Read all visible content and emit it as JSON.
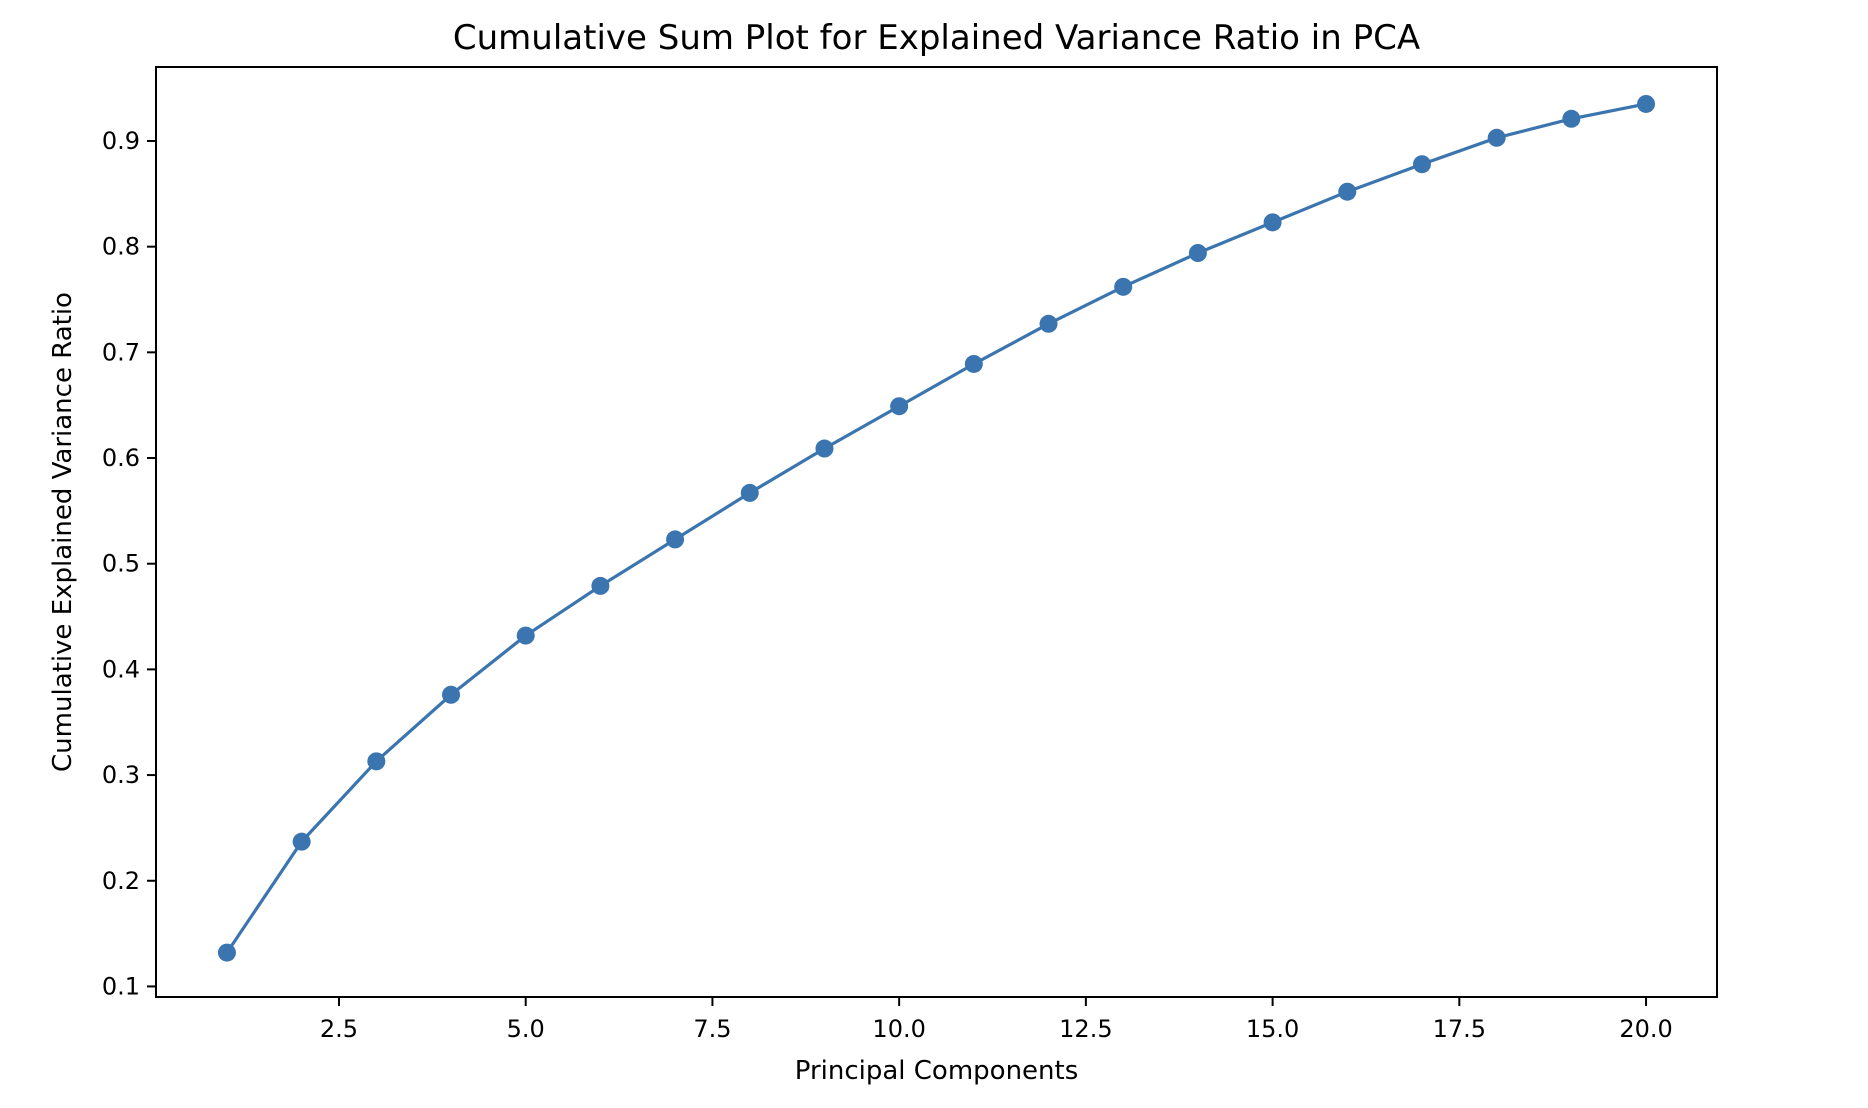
{
  "chart_data": {
    "type": "line",
    "title": "Cumulative Sum Plot for Explained Variance Ratio in PCA",
    "xlabel": "Principal Components",
    "ylabel": "Cumulative Explained Variance Ratio",
    "xlim": [
      0.05,
      20.95
    ],
    "ylim": [
      0.09,
      0.97
    ],
    "grid": false,
    "xticks": [
      2.5,
      5.0,
      7.5,
      10.0,
      12.5,
      15.0,
      17.5,
      20.0
    ],
    "xtick_labels": [
      "2.5",
      "5.0",
      "7.5",
      "10.0",
      "12.5",
      "15.0",
      "17.5",
      "20.0"
    ],
    "yticks": [
      0.1,
      0.2,
      0.3,
      0.4,
      0.5,
      0.6,
      0.7,
      0.8,
      0.9
    ],
    "ytick_labels": [
      "0.1",
      "0.2",
      "0.3",
      "0.4",
      "0.5",
      "0.6",
      "0.7",
      "0.8",
      "0.9"
    ],
    "series": [
      {
        "color": "#3b75af",
        "marker": "circle",
        "x": [
          1,
          2,
          3,
          4,
          5,
          6,
          7,
          8,
          9,
          10,
          11,
          12,
          13,
          14,
          15,
          16,
          17,
          18,
          19,
          20
        ],
        "y": [
          0.132,
          0.237,
          0.313,
          0.376,
          0.432,
          0.479,
          0.523,
          0.567,
          0.609,
          0.649,
          0.689,
          0.727,
          0.762,
          0.794,
          0.823,
          0.852,
          0.878,
          0.903,
          0.921,
          0.935
        ]
      }
    ]
  }
}
